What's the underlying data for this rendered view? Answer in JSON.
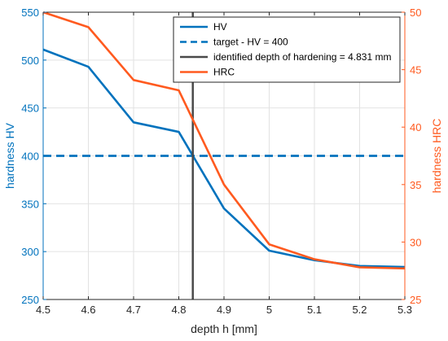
{
  "chart_data": {
    "type": "line",
    "xlabel": "depth h [mm]",
    "ylabel_left": "hardness HV",
    "ylabel_right": "hardness HRC",
    "xlim": [
      4.5,
      5.3
    ],
    "ylim_left": [
      250,
      550
    ],
    "ylim_right": [
      25,
      50
    ],
    "x_ticks": [
      "4.5",
      "4.6",
      "4.7",
      "4.8",
      "4.9",
      "5",
      "5.1",
      "5.2",
      "5.3"
    ],
    "y_left_ticks": [
      "250",
      "300",
      "350",
      "400",
      "450",
      "500",
      "550"
    ],
    "y_right_ticks": [
      "25",
      "30",
      "35",
      "40",
      "45",
      "50"
    ],
    "grid": true,
    "legend_position": "top-right",
    "colors": {
      "hv": "#0072BD",
      "hrc": "#FF5A1F",
      "depth_line": "#4A4A4A",
      "left_axis": "#0072BD",
      "right_axis": "#FF5A1F"
    },
    "series": [
      {
        "name": "HV",
        "axis": "left",
        "style": "solid",
        "x": [
          4.5,
          4.6,
          4.7,
          4.8,
          4.9,
          5.0,
          5.1,
          5.2,
          5.3
        ],
        "values": [
          511,
          493,
          435,
          425,
          345,
          301,
          291,
          285,
          284
        ]
      },
      {
        "name": "target - HV = 400",
        "axis": "left",
        "style": "dashed",
        "x": [
          4.5,
          5.3
        ],
        "values": [
          400,
          400
        ]
      },
      {
        "name": "identified depth of hardening = 4.831 mm",
        "axis": "vertical",
        "style": "solid",
        "x_value": 4.831
      },
      {
        "name": "HRC",
        "axis": "right",
        "style": "solid",
        "x": [
          4.5,
          4.6,
          4.7,
          4.8,
          4.9,
          5.0,
          5.1,
          5.2,
          5.3
        ],
        "values": [
          50.0,
          48.7,
          44.1,
          43.2,
          35.0,
          29.8,
          28.5,
          27.8,
          27.7
        ]
      }
    ]
  }
}
